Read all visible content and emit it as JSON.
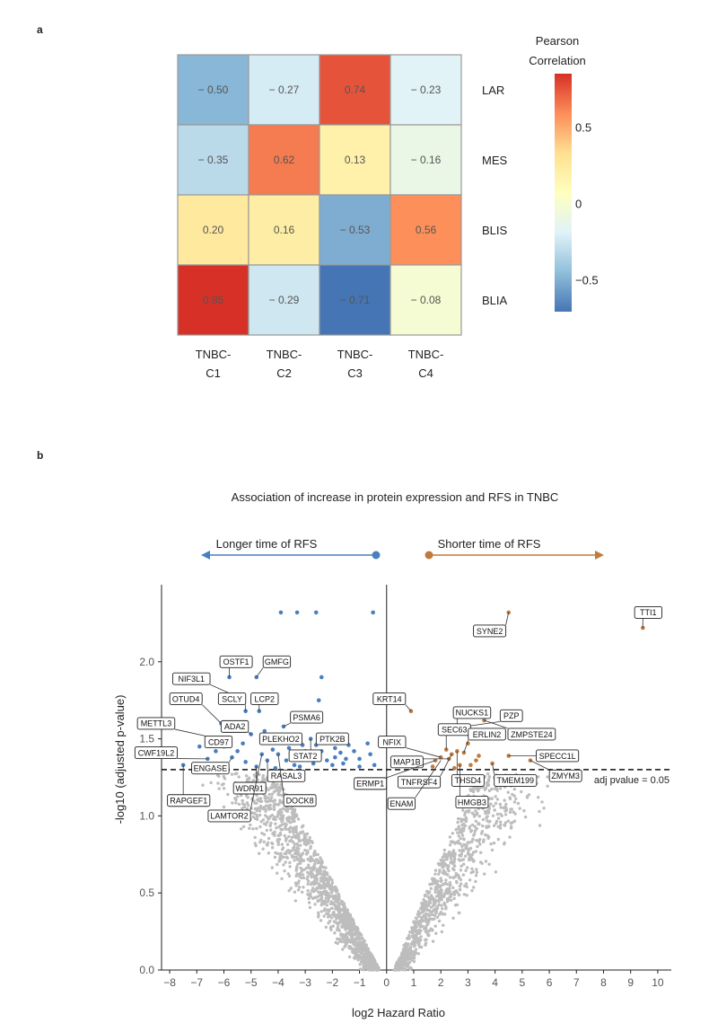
{
  "panel_a_label": "a",
  "panel_b_label": "b",
  "chart_data": [
    {
      "type": "heatmap",
      "rows": [
        "LAR",
        "MES",
        "BLIS",
        "BLIA"
      ],
      "columns": [
        [
          "TNBC-",
          "C1"
        ],
        [
          "TNBC-",
          "C2"
        ],
        [
          "TNBC-",
          "C3"
        ],
        [
          "TNBC-",
          "C4"
        ]
      ],
      "values": [
        [
          -0.5,
          -0.27,
          0.74,
          -0.23
        ],
        [
          -0.35,
          0.62,
          0.13,
          -0.16
        ],
        [
          0.2,
          0.16,
          -0.53,
          0.56
        ],
        [
          0.85,
          -0.29,
          -0.71,
          -0.08
        ]
      ],
      "value_labels": [
        [
          "− 0.50",
          "− 0.27",
          "0.74",
          "− 0.23"
        ],
        [
          "− 0.35",
          "0.62",
          "0.13",
          "− 0.16"
        ],
        [
          "0.20",
          "0.16",
          "− 0.53",
          "0.56"
        ],
        [
          "0.85",
          "− 0.29",
          "− 0.71",
          "− 0.08"
        ]
      ],
      "colorbar": {
        "title": [
          "Pearson",
          "Correlation"
        ],
        "range": [
          -0.71,
          0.85
        ],
        "ticks": [
          {
            "value": 0.5,
            "label": "0.5"
          },
          {
            "value": 0,
            "label": "0"
          },
          {
            "value": -0.5,
            "label": "−0.5"
          }
        ],
        "colors": [
          "#4575b4",
          "#91bfdb",
          "#e0f3f8",
          "#ffffbf",
          "#fee090",
          "#fc8d59",
          "#d73027"
        ]
      }
    },
    {
      "type": "scatter",
      "title": "Association of increase in protein expression and RFS in TNBC",
      "xlabel": "log2 Hazard Ratio",
      "ylabel": "-log10 (adjusted p-value)",
      "xlim": [
        -8.3,
        10.5
      ],
      "ylim": [
        0,
        2.5
      ],
      "xticks": [
        -8,
        -7,
        -6,
        -5,
        -4,
        -3,
        -2,
        -1,
        0,
        1,
        2,
        3,
        4,
        5,
        6,
        7,
        8,
        9,
        10
      ],
      "yticks": [
        {
          "value": 0,
          "label": "0.0"
        },
        {
          "value": 0.5,
          "label": "0.5"
        },
        {
          "value": 1.0,
          "label": "1.0"
        },
        {
          "value": 1.5,
          "label": "1.5"
        },
        {
          "value": 2.0,
          "label": "2.0"
        }
      ],
      "threshold": {
        "value": 1.3,
        "label": "adj pvalue = 0.05"
      },
      "left_arrow_label": "Longer time of RFS",
      "right_arrow_label": "Shorter time of RFS",
      "colors": {
        "negative": "#4a7fbf",
        "positive": "#c07a3e",
        "nonsig": "#bdbdbd"
      },
      "sig_negative": [
        [
          -3.9,
          2.32
        ],
        [
          -3.3,
          2.32
        ],
        [
          -2.6,
          2.32
        ],
        [
          -0.5,
          2.32
        ],
        [
          -2.4,
          1.9
        ],
        [
          -5.8,
          1.9
        ],
        [
          -4.8,
          1.9
        ],
        [
          -5.6,
          1.78
        ],
        [
          -5.2,
          1.68
        ],
        [
          -4.7,
          1.68
        ],
        [
          -2.5,
          1.75
        ],
        [
          -6.1,
          1.6
        ],
        [
          -6.2,
          1.5
        ],
        [
          -6.0,
          1.45
        ],
        [
          -5.3,
          1.47
        ],
        [
          -5.0,
          1.53
        ],
        [
          -4.5,
          1.55
        ],
        [
          -3.8,
          1.58
        ],
        [
          -3.4,
          1.5
        ],
        [
          -3.1,
          1.46
        ],
        [
          -2.8,
          1.5
        ],
        [
          -2.6,
          1.46
        ],
        [
          -2.2,
          1.48
        ],
        [
          -1.9,
          1.44
        ],
        [
          -1.4,
          1.46
        ],
        [
          -0.7,
          1.47
        ],
        [
          -0.45,
          1.33
        ],
        [
          -1.0,
          1.37
        ],
        [
          -1.5,
          1.37
        ],
        [
          -1.9,
          1.38
        ],
        [
          -2.2,
          1.36
        ],
        [
          -2.5,
          1.4
        ],
        [
          -2.9,
          1.37
        ],
        [
          -3.4,
          1.33
        ],
        [
          -4.0,
          1.4
        ],
        [
          -4.4,
          1.36
        ],
        [
          -4.8,
          1.32
        ],
        [
          -5.2,
          1.35
        ],
        [
          -5.7,
          1.38
        ],
        [
          -6.3,
          1.42
        ],
        [
          -6.6,
          1.37
        ],
        [
          -7.5,
          1.33
        ],
        [
          -4.2,
          1.43
        ],
        [
          -3.6,
          1.44
        ],
        [
          -3.0,
          1.42
        ],
        [
          -2.4,
          1.42
        ],
        [
          -1.7,
          1.41
        ],
        [
          -1.2,
          1.42
        ],
        [
          -5.5,
          1.42
        ],
        [
          -4.6,
          1.4
        ],
        [
          -3.2,
          1.32
        ],
        [
          -2.0,
          1.33
        ],
        [
          -1.0,
          1.32
        ],
        [
          -6.9,
          1.45
        ],
        [
          -5.9,
          1.33
        ],
        [
          -3.7,
          1.36
        ],
        [
          -2.7,
          1.34
        ],
        [
          -1.6,
          1.34
        ],
        [
          -0.6,
          1.4
        ],
        [
          -4.1,
          1.31
        ]
      ],
      "sig_positive": [
        [
          9.45,
          2.22
        ],
        [
          4.5,
          2.32
        ],
        [
          0.9,
          1.68
        ],
        [
          2.6,
          1.55
        ],
        [
          2.9,
          1.58
        ],
        [
          3.6,
          1.62
        ],
        [
          3.0,
          1.47
        ],
        [
          2.2,
          1.43
        ],
        [
          2.6,
          1.42
        ],
        [
          2.85,
          1.41
        ],
        [
          2.4,
          1.4
        ],
        [
          3.4,
          1.39
        ],
        [
          4.5,
          1.39
        ],
        [
          5.3,
          1.36
        ],
        [
          3.9,
          1.34
        ],
        [
          2.0,
          1.38
        ],
        [
          2.3,
          1.37
        ],
        [
          1.8,
          1.36
        ],
        [
          2.7,
          1.33
        ],
        [
          1.7,
          1.32
        ],
        [
          2.5,
          1.31
        ],
        [
          3.1,
          1.33
        ],
        [
          3.3,
          1.36
        ]
      ],
      "gene_labels": [
        {
          "gene": "TTI1",
          "x": 9.45,
          "y": 2.22,
          "lx": 9.65,
          "ly": 2.32
        },
        {
          "gene": "SYNE2",
          "x": 4.5,
          "y": 2.32,
          "lx": 3.8,
          "ly": 2.2
        },
        {
          "gene": "KRT14",
          "x": 0.9,
          "y": 1.68,
          "lx": 0.1,
          "ly": 1.76
        },
        {
          "gene": "NUCKS1",
          "x": 2.6,
          "y": 1.55,
          "lx": 3.15,
          "ly": 1.67
        },
        {
          "gene": "PZP",
          "x": 2.9,
          "y": 1.58,
          "lx": 4.6,
          "ly": 1.65
        },
        {
          "gene": "SEC63",
          "x": 2.2,
          "y": 1.43,
          "lx": 2.5,
          "ly": 1.56
        },
        {
          "gene": "ERLIN2",
          "x": 2.85,
          "y": 1.41,
          "lx": 3.7,
          "ly": 1.53
        },
        {
          "gene": "ZMPSTE24",
          "x": 3.6,
          "y": 1.62,
          "lx": 5.35,
          "ly": 1.53
        },
        {
          "gene": "NFIX",
          "x": 2.0,
          "y": 1.38,
          "lx": 0.2,
          "ly": 1.48
        },
        {
          "gene": "MAP1B",
          "x": 2.3,
          "y": 1.37,
          "lx": 0.75,
          "ly": 1.35
        },
        {
          "gene": "SPECC1L",
          "x": 4.5,
          "y": 1.39,
          "lx": 6.3,
          "ly": 1.39
        },
        {
          "gene": "ERMP1",
          "x": 1.8,
          "y": 1.36,
          "lx": -0.6,
          "ly": 1.21
        },
        {
          "gene": "TNFRSF4",
          "x": 2.4,
          "y": 1.4,
          "lx": 1.2,
          "ly": 1.22
        },
        {
          "gene": "THSD4",
          "x": 2.6,
          "y": 1.42,
          "lx": 3.0,
          "ly": 1.23
        },
        {
          "gene": "TMEM199",
          "x": 3.9,
          "y": 1.34,
          "lx": 4.75,
          "ly": 1.23
        },
        {
          "gene": "ZMYM3",
          "x": 5.3,
          "y": 1.36,
          "lx": 6.6,
          "ly": 1.26
        },
        {
          "gene": "ENAM",
          "x": 2.0,
          "y": 1.36,
          "lx": 0.55,
          "ly": 1.08
        },
        {
          "gene": "HMGB3",
          "x": 2.7,
          "y": 1.33,
          "lx": 3.15,
          "ly": 1.09
        },
        {
          "gene": "OSTF1",
          "x": -5.8,
          "y": 1.9,
          "lx": -5.55,
          "ly": 2.0
        },
        {
          "gene": "GMFG",
          "x": -4.8,
          "y": 1.9,
          "lx": -4.05,
          "ly": 2.0
        },
        {
          "gene": "NIF3L1",
          "x": -5.6,
          "y": 1.78,
          "lx": -7.2,
          "ly": 1.89
        },
        {
          "gene": "OTUD4",
          "x": -6.1,
          "y": 1.6,
          "lx": -7.4,
          "ly": 1.76
        },
        {
          "gene": "SCLY",
          "x": -5.2,
          "y": 1.68,
          "lx": -5.7,
          "ly": 1.76
        },
        {
          "gene": "LCP2",
          "x": -4.7,
          "y": 1.68,
          "lx": -4.5,
          "ly": 1.76
        },
        {
          "gene": "METTL3",
          "x": -6.2,
          "y": 1.5,
          "lx": -8.5,
          "ly": 1.6
        },
        {
          "gene": "PSMA6",
          "x": -3.8,
          "y": 1.58,
          "lx": -2.95,
          "ly": 1.64
        },
        {
          "gene": "ADA2",
          "x": -5.0,
          "y": 1.53,
          "lx": -5.6,
          "ly": 1.58
        },
        {
          "gene": "PLEKHO2",
          "x": -3.4,
          "y": 1.5,
          "lx": -3.9,
          "ly": 1.5
        },
        {
          "gene": "PTK2B",
          "x": -2.6,
          "y": 1.46,
          "lx": -2.0,
          "ly": 1.5
        },
        {
          "gene": "CD97",
          "x": -6.0,
          "y": 1.45,
          "lx": -6.2,
          "ly": 1.48
        },
        {
          "gene": "STAT2",
          "x": -2.8,
          "y": 1.5,
          "lx": -3.0,
          "ly": 1.39
        },
        {
          "gene": "CWF19L2",
          "x": -6.6,
          "y": 1.37,
          "lx": -8.5,
          "ly": 1.41
        },
        {
          "gene": "ENGASE",
          "x": -5.7,
          "y": 1.38,
          "lx": -6.5,
          "ly": 1.31
        },
        {
          "gene": "RASAL3",
          "x": -4.4,
          "y": 1.36,
          "lx": -3.7,
          "ly": 1.26
        },
        {
          "gene": "WDR91",
          "x": -4.8,
          "y": 1.32,
          "lx": -5.05,
          "ly": 1.18
        },
        {
          "gene": "DOCK8",
          "x": -4.0,
          "y": 1.4,
          "lx": -3.2,
          "ly": 1.1
        },
        {
          "gene": "RAPGEF1",
          "x": -7.5,
          "y": 1.33,
          "lx": -7.3,
          "ly": 1.1
        },
        {
          "gene": "LAMTOR2",
          "x": -4.6,
          "y": 1.4,
          "lx": -5.8,
          "ly": 1.0
        }
      ]
    }
  ]
}
